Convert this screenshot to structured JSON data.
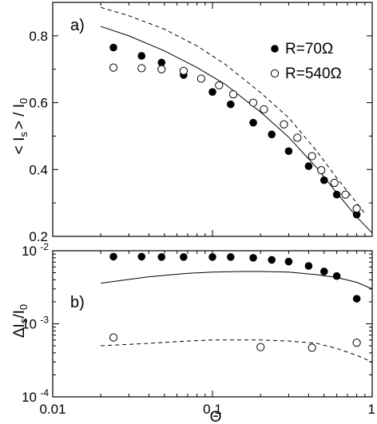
{
  "chart_data": [
    {
      "type": "scatter",
      "panel_label": "a)",
      "xscale": "log",
      "xlim": [
        0.01,
        1
      ],
      "ylim": [
        0.2,
        0.9
      ],
      "ylabel": "< I_s > / I_0",
      "ylabel_parts": {
        "open": "< I",
        "sub": "s",
        "close": "> / I",
        "sub2": "0"
      },
      "yticks": [
        0.2,
        0.4,
        0.6,
        0.8
      ],
      "ytick_labels": [
        "0.2",
        "0.4",
        "0.6",
        "0.8"
      ],
      "legend_position": "top-right",
      "series": [
        {
          "name": "R=70Ω",
          "marker": "filled-circle",
          "x": [
            0.024,
            0.036,
            0.048,
            0.066,
            0.1,
            0.13,
            0.18,
            0.235,
            0.3,
            0.4,
            0.5,
            0.6,
            0.8
          ],
          "y": [
            0.765,
            0.74,
            0.72,
            0.683,
            0.632,
            0.595,
            0.54,
            0.505,
            0.455,
            0.41,
            0.368,
            0.325,
            0.265
          ]
        },
        {
          "name": "R=540Ω",
          "marker": "open-circle",
          "x": [
            0.024,
            0.036,
            0.048,
            0.066,
            0.085,
            0.11,
            0.135,
            0.18,
            0.21,
            0.28,
            0.34,
            0.42,
            0.48,
            0.58,
            0.68,
            0.8
          ],
          "y": [
            0.705,
            0.703,
            0.7,
            0.695,
            0.672,
            0.652,
            0.625,
            0.6,
            0.58,
            0.535,
            0.495,
            0.44,
            0.398,
            0.36,
            0.325,
            0.283
          ]
        }
      ],
      "curves": [
        {
          "style": "solid",
          "x": [
            0.02,
            0.03,
            0.05,
            0.08,
            0.12,
            0.2,
            0.3,
            0.45,
            0.6,
            0.8,
            1.0
          ],
          "y": [
            0.828,
            0.8,
            0.755,
            0.705,
            0.655,
            0.572,
            0.497,
            0.405,
            0.33,
            0.258,
            0.21
          ]
        },
        {
          "style": "dashed",
          "x": [
            0.02,
            0.03,
            0.05,
            0.08,
            0.12,
            0.2,
            0.3,
            0.45,
            0.6,
            0.8,
            0.9
          ],
          "y": [
            0.885,
            0.86,
            0.82,
            0.77,
            0.715,
            0.63,
            0.555,
            0.455,
            0.375,
            0.3,
            0.268
          ]
        }
      ]
    },
    {
      "type": "scatter",
      "panel_label": "b)",
      "xscale": "log",
      "yscale": "log",
      "xlim": [
        0.01,
        1
      ],
      "ylim": [
        0.0001,
        0.01
      ],
      "xlabel": "Θ",
      "ylabel": "ΔI_s/I_0",
      "ylabel_parts": {
        "open": "ΔI",
        "sub": "s",
        "close": "/I",
        "sub2": "0"
      },
      "xticks": [
        0.01,
        0.1,
        1
      ],
      "xtick_labels": [
        "0.01",
        "0.1",
        "1"
      ],
      "yticks": [
        0.0001,
        0.001,
        0.01
      ],
      "ytick_labels": [
        {
          "base": "10",
          "exp": "-4"
        },
        {
          "base": "10",
          "exp": "-3"
        },
        {
          "base": "10",
          "exp": "-2"
        }
      ],
      "series": [
        {
          "name": "R=70Ω",
          "marker": "filled-circle",
          "x": [
            0.024,
            0.036,
            0.048,
            0.066,
            0.1,
            0.13,
            0.18,
            0.235,
            0.3,
            0.4,
            0.5,
            0.6,
            0.8
          ],
          "y": [
            0.0083,
            0.0083,
            0.0082,
            0.0082,
            0.0082,
            0.0082,
            0.008,
            0.0075,
            0.0071,
            0.0062,
            0.0052,
            0.0045,
            0.0022
          ]
        },
        {
          "name": "R=540Ω",
          "marker": "open-circle",
          "x": [
            0.024,
            0.2,
            0.42,
            0.8
          ],
          "y": [
            0.00065,
            0.00048,
            0.00047,
            0.00055
          ]
        }
      ],
      "curves": [
        {
          "style": "solid",
          "x": [
            0.02,
            0.04,
            0.07,
            0.1,
            0.15,
            0.2,
            0.3,
            0.45,
            0.6,
            0.8,
            1.0
          ],
          "y": [
            0.0036,
            0.0044,
            0.0049,
            0.0051,
            0.0052,
            0.0052,
            0.0051,
            0.0047,
            0.0043,
            0.0037,
            0.003
          ]
        },
        {
          "style": "dashed",
          "x": [
            0.02,
            0.04,
            0.07,
            0.1,
            0.15,
            0.2,
            0.3,
            0.45,
            0.6,
            0.8,
            1.0
          ],
          "y": [
            0.0005,
            0.00054,
            0.00058,
            0.0006,
            0.0006,
            0.0006,
            0.00058,
            0.00054,
            0.00046,
            0.00037,
            0.0003
          ]
        }
      ]
    }
  ]
}
